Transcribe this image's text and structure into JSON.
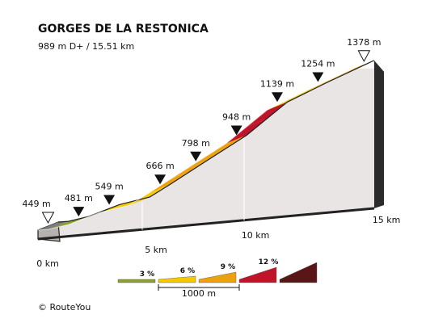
{
  "chart_data": {
    "type": "area",
    "title": "GORGES DE LA RESTONICA",
    "subtitle": "989 m D+ / 15.51 km",
    "x_unit": "km",
    "x_ticks": [
      "0 km",
      "5 km",
      "10 km",
      "15 km"
    ],
    "x_tick_values": [
      0,
      5,
      10,
      15
    ],
    "total_km": 15.51,
    "points": [
      {
        "km": 0,
        "elev": 449,
        "label": "449 m"
      },
      {
        "km": 0.5,
        "elev": 453
      },
      {
        "km": 1.5,
        "elev": 481,
        "label": "481 m"
      },
      {
        "km": 3.0,
        "elev": 549,
        "label": "549 m"
      },
      {
        "km": 4.5,
        "elev": 593
      },
      {
        "km": 5.5,
        "elev": 666,
        "label": "666 m"
      },
      {
        "km": 7.25,
        "elev": 798,
        "label": "798 m"
      },
      {
        "km": 9.25,
        "elev": 948,
        "label": "948 m"
      },
      {
        "km": 11.25,
        "elev": 1139,
        "label": "1139 m"
      },
      {
        "km": 13.25,
        "elev": 1254,
        "label": "1254 m"
      },
      {
        "km": 15.51,
        "elev": 1378,
        "label": "1378 m"
      }
    ],
    "segments": [
      {
        "from": 0.5,
        "to": 1.5,
        "grade": "3"
      },
      {
        "from": 1.5,
        "to": 2.25,
        "grade": "6"
      },
      {
        "from": 2.25,
        "to": 3.0,
        "grade": "3"
      },
      {
        "from": 3.0,
        "to": 4.5,
        "grade": "6"
      },
      {
        "from": 4.5,
        "to": 5.5,
        "grade": "6"
      },
      {
        "from": 5.5,
        "to": 6.5,
        "grade": "9"
      },
      {
        "from": 6.5,
        "to": 7.25,
        "grade": "9"
      },
      {
        "from": 7.25,
        "to": 8.25,
        "grade": "9"
      },
      {
        "from": 8.25,
        "to": 9.25,
        "grade": "9"
      },
      {
        "from": 9.25,
        "to": 10.25,
        "grade": "12"
      },
      {
        "from": 10.25,
        "to": 11.25,
        "grade": "12"
      },
      {
        "from": 11.25,
        "to": 12.25,
        "grade": "6"
      },
      {
        "from": 12.25,
        "to": 13.25,
        "grade": "6"
      },
      {
        "from": 13.25,
        "to": 14.25,
        "grade": "9"
      },
      {
        "from": 14.25,
        "to": 15.51,
        "grade": "9"
      }
    ],
    "legend": [
      {
        "label": "3 %",
        "grade": "3"
      },
      {
        "label": "6 %",
        "grade": "6"
      },
      {
        "label": "9 %",
        "grade": "9"
      },
      {
        "label": "12 %",
        "grade": "12"
      },
      {
        "label": "",
        "grade": "15"
      }
    ],
    "scale_label": "1000 m",
    "colors": {
      "3": "#8aa032",
      "6": "#f5c800",
      "9": "#eda10e",
      "12": "#c0142a",
      "15": "#5a1517",
      "body": "#e9e5e4",
      "outline": "#222222"
    }
  },
  "copyright": "© RouteYou"
}
